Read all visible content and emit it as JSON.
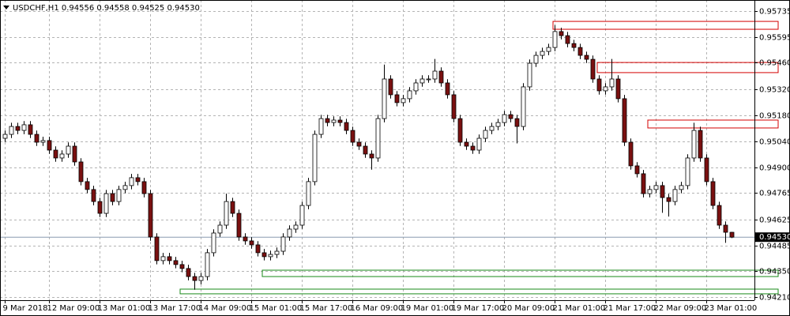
{
  "chart_data": {
    "type": "candlestick",
    "title": "USDCHF,H1  0.94556 0.94558 0.94525 0.94530",
    "ylim": [
      0.94194,
      0.95794
    ],
    "yticks": [
      0.95735,
      0.95595,
      {
        "value": 0.9546,
        "label": "0.95460"
      },
      {
        "value": 0.9532,
        "label": "0.95320"
      },
      {
        "value": 0.9518,
        "label": "0.95180"
      },
      {
        "value": 0.9504,
        "label": "0.95040"
      },
      {
        "value": 0.949,
        "label": "0.94900"
      },
      0.94765,
      0.94625,
      0.94485,
      {
        "value": 0.9435,
        "label": "0.94350"
      },
      {
        "value": 0.9421,
        "label": "0.94210"
      }
    ],
    "xticks": [
      {
        "value": 0,
        "label": "9 Mar 2018"
      },
      {
        "value": 7,
        "label": "12 Mar 09:00"
      },
      {
        "value": 15,
        "label": "13 Mar 01:00"
      },
      {
        "value": 23,
        "label": "13 Mar 17:00"
      },
      {
        "value": 31,
        "label": "14 Mar 09:00"
      },
      {
        "value": 39,
        "label": "15 Mar 01:00"
      },
      {
        "value": 47,
        "label": "15 Mar 17:00"
      },
      {
        "value": 55,
        "label": "16 Mar 09:00"
      },
      {
        "value": 63,
        "label": "19 Mar 01:00"
      },
      {
        "value": 71,
        "label": "19 Mar 17:00"
      },
      {
        "value": 79,
        "label": "20 Mar 09:00"
      },
      {
        "value": 87,
        "label": "21 Mar 01:00"
      },
      {
        "value": 95,
        "label": "21 Mar 17:00"
      },
      {
        "value": 103,
        "label": "22 Mar 09:00"
      },
      {
        "value": 111,
        "label": "23 Mar 01:00"
      }
    ],
    "grid": true,
    "up_color": "#ffffff",
    "down_color": "#7a1010",
    "last_price": {
      "value": 0.9453,
      "label": "0.94530"
    },
    "zones": [
      {
        "from": 87,
        "top": 0.9568,
        "bottom": 0.95638,
        "color": "#d40000"
      },
      {
        "from": 94,
        "top": 0.95461,
        "bottom": 0.95407,
        "color": "#d40000"
      },
      {
        "from": 102,
        "top": 0.95154,
        "bottom": 0.95112,
        "color": "#d40000"
      },
      {
        "from": 41,
        "top": 0.94354,
        "bottom": 0.9432,
        "color": "#1a8a1a"
      },
      {
        "from": 28,
        "top": 0.94253,
        "bottom": 0.94228,
        "color": "#1a8a1a"
      }
    ],
    "candles": [
      [
        0.95057,
        0.95098,
        0.95037,
        0.95078
      ],
      [
        0.95078,
        0.9514,
        0.95058,
        0.9512
      ],
      [
        0.9512,
        0.9514,
        0.95079,
        0.95099
      ],
      [
        0.95099,
        0.95149,
        0.95079,
        0.95129
      ],
      [
        0.95129,
        0.95149,
        0.95058,
        0.95078
      ],
      [
        0.95078,
        0.95098,
        0.95016,
        0.95036
      ],
      [
        0.95036,
        0.95065,
        0.95016,
        0.95045
      ],
      [
        0.95045,
        0.95065,
        0.94974,
        0.94994
      ],
      [
        0.94994,
        0.95014,
        0.94932,
        0.94952
      ],
      [
        0.94952,
        0.94993,
        0.94932,
        0.94973
      ],
      [
        0.94973,
        0.95035,
        0.94953,
        0.95015
      ],
      [
        0.95015,
        0.95035,
        0.94911,
        0.94931
      ],
      [
        0.94931,
        0.94951,
        0.94806,
        0.94826
      ],
      [
        0.94826,
        0.94846,
        0.94764,
        0.94784
      ],
      [
        0.94784,
        0.94804,
        0.947,
        0.9472
      ],
      [
        0.9472,
        0.9474,
        0.94637,
        0.94657
      ],
      [
        0.94657,
        0.94782,
        0.94637,
        0.94762
      ],
      [
        0.94762,
        0.94782,
        0.947,
        0.9472
      ],
      [
        0.9472,
        0.94804,
        0.947,
        0.94784
      ],
      [
        0.94784,
        0.94825,
        0.94764,
        0.94805
      ],
      [
        0.94805,
        0.94867,
        0.94785,
        0.94847
      ],
      [
        0.94847,
        0.94867,
        0.94806,
        0.94826
      ],
      [
        0.94826,
        0.94846,
        0.94742,
        0.94762
      ],
      [
        0.94762,
        0.94782,
        0.94511,
        0.94531
      ],
      [
        0.94531,
        0.94551,
        0.94385,
        0.94405
      ],
      [
        0.94405,
        0.94446,
        0.94385,
        0.94426
      ],
      [
        0.94426,
        0.94446,
        0.94385,
        0.94405
      ],
      [
        0.94405,
        0.94425,
        0.94364,
        0.94384
      ],
      [
        0.94384,
        0.94404,
        0.94343,
        0.94363
      ],
      [
        0.94363,
        0.94383,
        0.943,
        0.9432
      ],
      [
        0.9432,
        0.9434,
        0.9425,
        0.94299
      ],
      [
        0.94299,
        0.9434,
        0.94279,
        0.9432
      ],
      [
        0.9432,
        0.94467,
        0.943,
        0.94447
      ],
      [
        0.94447,
        0.94572,
        0.94427,
        0.94552
      ],
      [
        0.94552,
        0.94614,
        0.94532,
        0.94594
      ],
      [
        0.94594,
        0.94762,
        0.94574,
        0.9472
      ],
      [
        0.9472,
        0.9474,
        0.94637,
        0.94657
      ],
      [
        0.94657,
        0.94677,
        0.94511,
        0.94531
      ],
      [
        0.94531,
        0.94551,
        0.9449,
        0.9451
      ],
      [
        0.9451,
        0.9453,
        0.94469,
        0.94489
      ],
      [
        0.94489,
        0.94509,
        0.94427,
        0.94447
      ],
      [
        0.94447,
        0.94467,
        0.94406,
        0.94426
      ],
      [
        0.94426,
        0.94458,
        0.94406,
        0.94438
      ],
      [
        0.94438,
        0.94475,
        0.94418,
        0.94455
      ],
      [
        0.94455,
        0.94551,
        0.94435,
        0.94531
      ],
      [
        0.94531,
        0.94593,
        0.94511,
        0.94573
      ],
      [
        0.94573,
        0.94614,
        0.94553,
        0.94594
      ],
      [
        0.94594,
        0.94719,
        0.94574,
        0.94699
      ],
      [
        0.94699,
        0.94846,
        0.94679,
        0.94826
      ],
      [
        0.94826,
        0.95098,
        0.94806,
        0.95078
      ],
      [
        0.95078,
        0.95182,
        0.95058,
        0.95162
      ],
      [
        0.95162,
        0.95182,
        0.95121,
        0.95141
      ],
      [
        0.95141,
        0.95174,
        0.95121,
        0.95154
      ],
      [
        0.95154,
        0.95174,
        0.95121,
        0.95141
      ],
      [
        0.95141,
        0.95161,
        0.95079,
        0.95099
      ],
      [
        0.95099,
        0.95119,
        0.95016,
        0.95036
      ],
      [
        0.95036,
        0.95056,
        0.94995,
        0.95015
      ],
      [
        0.95015,
        0.95035,
        0.94953,
        0.94973
      ],
      [
        0.94973,
        0.94993,
        0.9489,
        0.94952
      ],
      [
        0.94952,
        0.95182,
        0.94932,
        0.95162
      ],
      [
        0.95162,
        0.9545,
        0.95142,
        0.95373
      ],
      [
        0.95373,
        0.95393,
        0.95269,
        0.95289
      ],
      [
        0.95289,
        0.95309,
        0.95227,
        0.95247
      ],
      [
        0.95247,
        0.95288,
        0.95227,
        0.95268
      ],
      [
        0.95268,
        0.9533,
        0.95248,
        0.9531
      ],
      [
        0.9531,
        0.95372,
        0.9529,
        0.95352
      ],
      [
        0.95352,
        0.95393,
        0.95332,
        0.95373
      ],
      [
        0.95373,
        0.95393,
        0.95353,
        0.95373
      ],
      [
        0.95373,
        0.9548,
        0.95353,
        0.95415
      ],
      [
        0.95415,
        0.95435,
        0.95332,
        0.95352
      ],
      [
        0.95352,
        0.95372,
        0.95269,
        0.95289
      ],
      [
        0.95289,
        0.95309,
        0.95142,
        0.95162
      ],
      [
        0.95162,
        0.95182,
        0.95016,
        0.95036
      ],
      [
        0.95036,
        0.95056,
        0.94995,
        0.95015
      ],
      [
        0.95015,
        0.95035,
        0.94974,
        0.94994
      ],
      [
        0.94994,
        0.95077,
        0.94974,
        0.95057
      ],
      [
        0.95057,
        0.95119,
        0.95037,
        0.95099
      ],
      [
        0.95099,
        0.9514,
        0.95079,
        0.9512
      ],
      [
        0.9512,
        0.95161,
        0.951,
        0.95141
      ],
      [
        0.95141,
        0.95203,
        0.95121,
        0.95183
      ],
      [
        0.95183,
        0.95203,
        0.95142,
        0.95162
      ],
      [
        0.95162,
        0.95182,
        0.9503,
        0.9512
      ],
      [
        0.9512,
        0.95351,
        0.951,
        0.95331
      ],
      [
        0.95331,
        0.95477,
        0.95311,
        0.95457
      ],
      [
        0.95457,
        0.95519,
        0.95437,
        0.95499
      ],
      [
        0.95499,
        0.9554,
        0.95479,
        0.9552
      ],
      [
        0.9552,
        0.95561,
        0.955,
        0.95541
      ],
      [
        0.95541,
        0.9566,
        0.95521,
        0.95626
      ],
      [
        0.95626,
        0.95646,
        0.95584,
        0.95604
      ],
      [
        0.95604,
        0.95624,
        0.95542,
        0.95562
      ],
      [
        0.95562,
        0.95582,
        0.95521,
        0.95541
      ],
      [
        0.95541,
        0.95561,
        0.95479,
        0.95499
      ],
      [
        0.95499,
        0.95519,
        0.95458,
        0.95478
      ],
      [
        0.95478,
        0.95498,
        0.95353,
        0.95373
      ],
      [
        0.95373,
        0.95393,
        0.9529,
        0.9531
      ],
      [
        0.9531,
        0.95351,
        0.9529,
        0.95331
      ],
      [
        0.95331,
        0.9548,
        0.95311,
        0.95373
      ],
      [
        0.95373,
        0.95393,
        0.95248,
        0.95268
      ],
      [
        0.95268,
        0.95288,
        0.95016,
        0.95036
      ],
      [
        0.95036,
        0.95056,
        0.9489,
        0.9491
      ],
      [
        0.9491,
        0.9493,
        0.94848,
        0.94868
      ],
      [
        0.94868,
        0.94888,
        0.94742,
        0.94762
      ],
      [
        0.94762,
        0.94804,
        0.94742,
        0.94784
      ],
      [
        0.94784,
        0.94825,
        0.94764,
        0.94805
      ],
      [
        0.94805,
        0.94825,
        0.9466,
        0.94741
      ],
      [
        0.94741,
        0.94761,
        0.9464,
        0.9472
      ],
      [
        0.9472,
        0.94804,
        0.947,
        0.94784
      ],
      [
        0.94784,
        0.94825,
        0.94764,
        0.94805
      ],
      [
        0.94805,
        0.94972,
        0.94785,
        0.94952
      ],
      [
        0.94952,
        0.9514,
        0.94932,
        0.95099
      ],
      [
        0.95099,
        0.95119,
        0.94932,
        0.94952
      ],
      [
        0.94952,
        0.94972,
        0.94806,
        0.94826
      ],
      [
        0.94826,
        0.94846,
        0.94679,
        0.94699
      ],
      [
        0.94699,
        0.94719,
        0.94574,
        0.94594
      ],
      [
        0.94594,
        0.94614,
        0.945,
        0.94556
      ],
      [
        0.94556,
        0.94558,
        0.94525,
        0.9453
      ]
    ]
  }
}
